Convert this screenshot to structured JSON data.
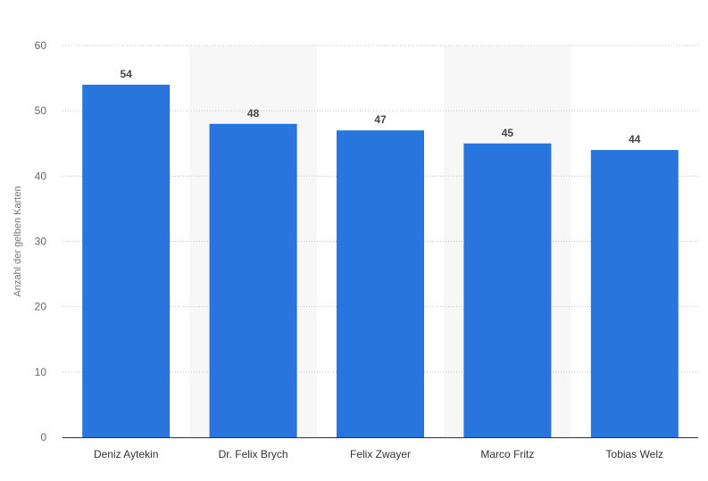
{
  "chart_data": {
    "type": "bar",
    "categories": [
      "Deniz Aytekin",
      "Dr. Felix Brych",
      "Felix Zwayer",
      "Marco Fritz",
      "Tobias Welz"
    ],
    "values": [
      54,
      48,
      47,
      45,
      44
    ],
    "title": "",
    "xlabel": "",
    "ylabel": "Anzahl der gelben Karten",
    "ylim": [
      0,
      60
    ],
    "yticks": [
      0,
      10,
      20,
      30,
      40,
      50,
      60
    ],
    "grid": true,
    "legend": "none",
    "bar_color": "#2876dd",
    "alt_band_color": "#f7f7f7"
  }
}
